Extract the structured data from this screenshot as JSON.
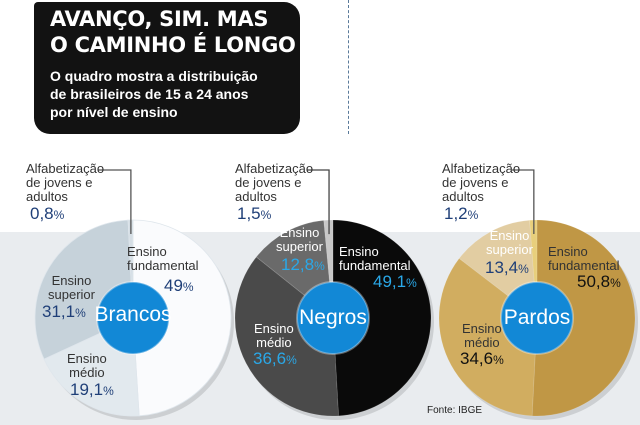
{
  "header": {
    "title_line1": "AVANÇO, SIM. MAS",
    "title_line2": "O CAMINHO É LONGO",
    "subtitle_line1": "O quadro mostra a distribuição",
    "subtitle_line2": "de brasileiros de 15 a 24 anos",
    "subtitle_line3": "por nível de ensino"
  },
  "source": "Fonte: IBGE",
  "colors": {
    "brancos": [
      "#fafbfd",
      "#e2e9ee",
      "#c6d2da",
      "#d5dee5"
    ],
    "negros": [
      "#0a0a0a",
      "#4a4a4a",
      "#6a6a6a",
      "#c8c8c8"
    ],
    "pardos": [
      "#c09745",
      "#d1ad60",
      "#e2cda2",
      "#e8cf7c"
    ],
    "center": "#1288d6"
  },
  "chart_data": {
    "type": "pie",
    "categories": [
      "Ensino fundamental",
      "Ensino médio",
      "Ensino superior",
      "Alfabetização de jovens e adultos"
    ],
    "charts": [
      {
        "name": "Brancos",
        "values": [
          49,
          19.1,
          31.1,
          0.8
        ]
      },
      {
        "name": "Negros",
        "values": [
          49.1,
          36.6,
          12.8,
          1.5
        ]
      },
      {
        "name": "Pardos",
        "values": [
          50.8,
          34.6,
          13.4,
          1.2
        ]
      }
    ]
  },
  "labels": {
    "fundamental_l1": "Ensino",
    "fundamental_l2": "fundamental",
    "medio_l1": "Ensino",
    "medio_l2": "médio",
    "superior_l1": "Ensino",
    "superior_l2": "superior",
    "alfa_l1": "Alfabetização",
    "alfa_l2": "de jovens e",
    "alfa_l3": "adultos",
    "pct_sign": "%",
    "brancos": {
      "fundamental": "49",
      "medio": "19,1",
      "superior": "31,1",
      "alfa": "0,8"
    },
    "negros": {
      "fundamental": "49,1",
      "medio": "36,6",
      "superior": "12,8",
      "alfa": "1,5"
    },
    "pardos": {
      "fundamental": "50,8",
      "medio": "34,6",
      "superior": "13,4",
      "alfa": "1,2"
    }
  }
}
